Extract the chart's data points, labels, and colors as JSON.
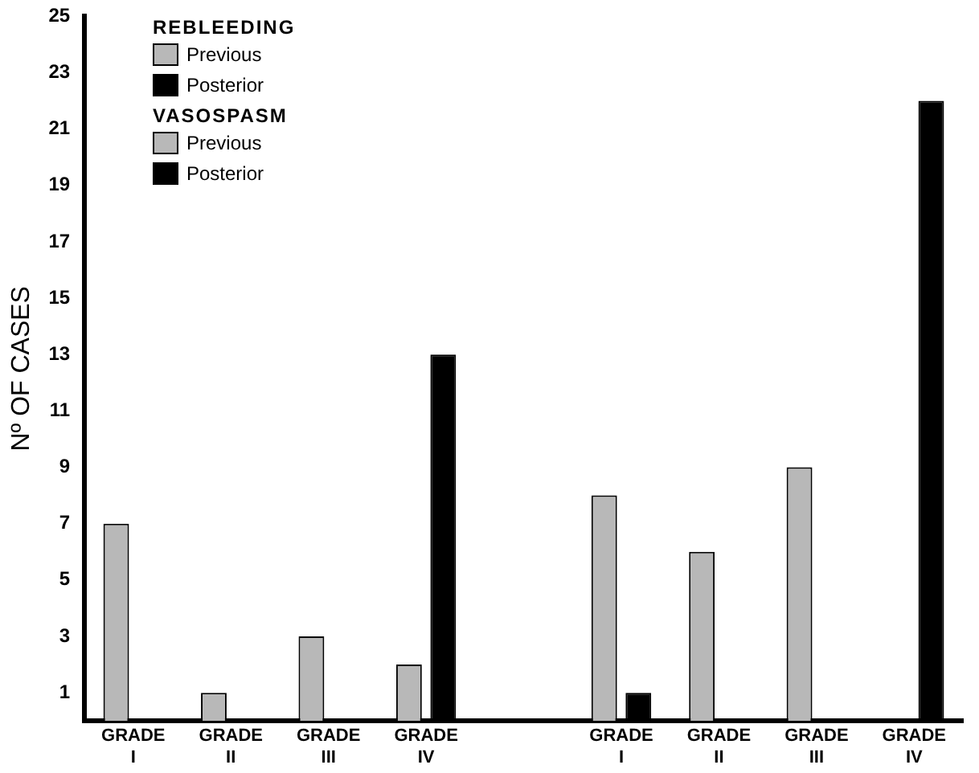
{
  "chart_data": {
    "type": "bar",
    "ylabel": "Nº OF CASES",
    "categories": [
      "GRADE\nI",
      "GRADE\nII",
      "GRADE\nIII",
      "GRADE\nIV",
      null,
      "GRADE\nI",
      "GRADE\nII",
      "GRADE\nIII",
      "GRADE\nIV"
    ],
    "series": [
      {
        "name": "Previous",
        "color": "#b8b8b8",
        "values": [
          7,
          1,
          3,
          2,
          null,
          null,
          null,
          null,
          null
        ]
      },
      {
        "name": "Posterior",
        "color": "#000000",
        "values": [
          0,
          0,
          0,
          13,
          null,
          null,
          null,
          null,
          null
        ]
      },
      {
        "name": "Previous",
        "color": "#b8b8b8",
        "values": [
          null,
          null,
          null,
          null,
          null,
          8,
          6,
          9,
          0
        ]
      },
      {
        "name": "Posterior",
        "color": "#000000",
        "values": [
          null,
          null,
          null,
          null,
          null,
          1,
          0,
          0,
          22
        ]
      }
    ],
    "annotations": [
      "REBLEEDING",
      "VASOSPASM"
    ],
    "ylim": [
      0,
      25
    ],
    "yticks": [
      1,
      3,
      5,
      7,
      9,
      11,
      13,
      15,
      17,
      19,
      21,
      23,
      25
    ],
    "grid": false,
    "legend": "top left"
  }
}
